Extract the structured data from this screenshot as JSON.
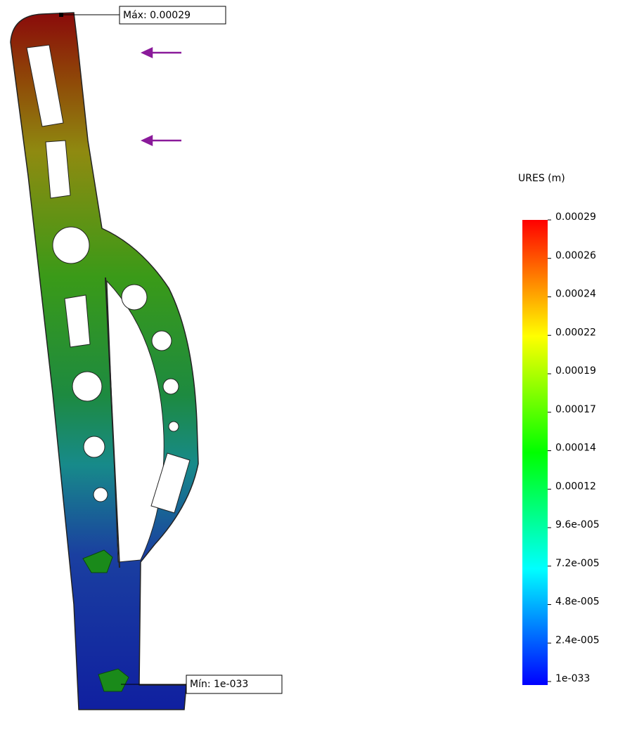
{
  "legend": {
    "title": "URES (m)",
    "labels": [
      "0.00029",
      "0.00026",
      "0.00024",
      "0.00022",
      "0.00019",
      "0.00017",
      "0.00014",
      "0.00012",
      "9.6e-005",
      "7.2e-005",
      "4.8e-005",
      "2.4e-005",
      "1e-033"
    ]
  },
  "annotations": {
    "max": "Máx: 0.00029",
    "min": "Mín: 1e-033"
  }
}
